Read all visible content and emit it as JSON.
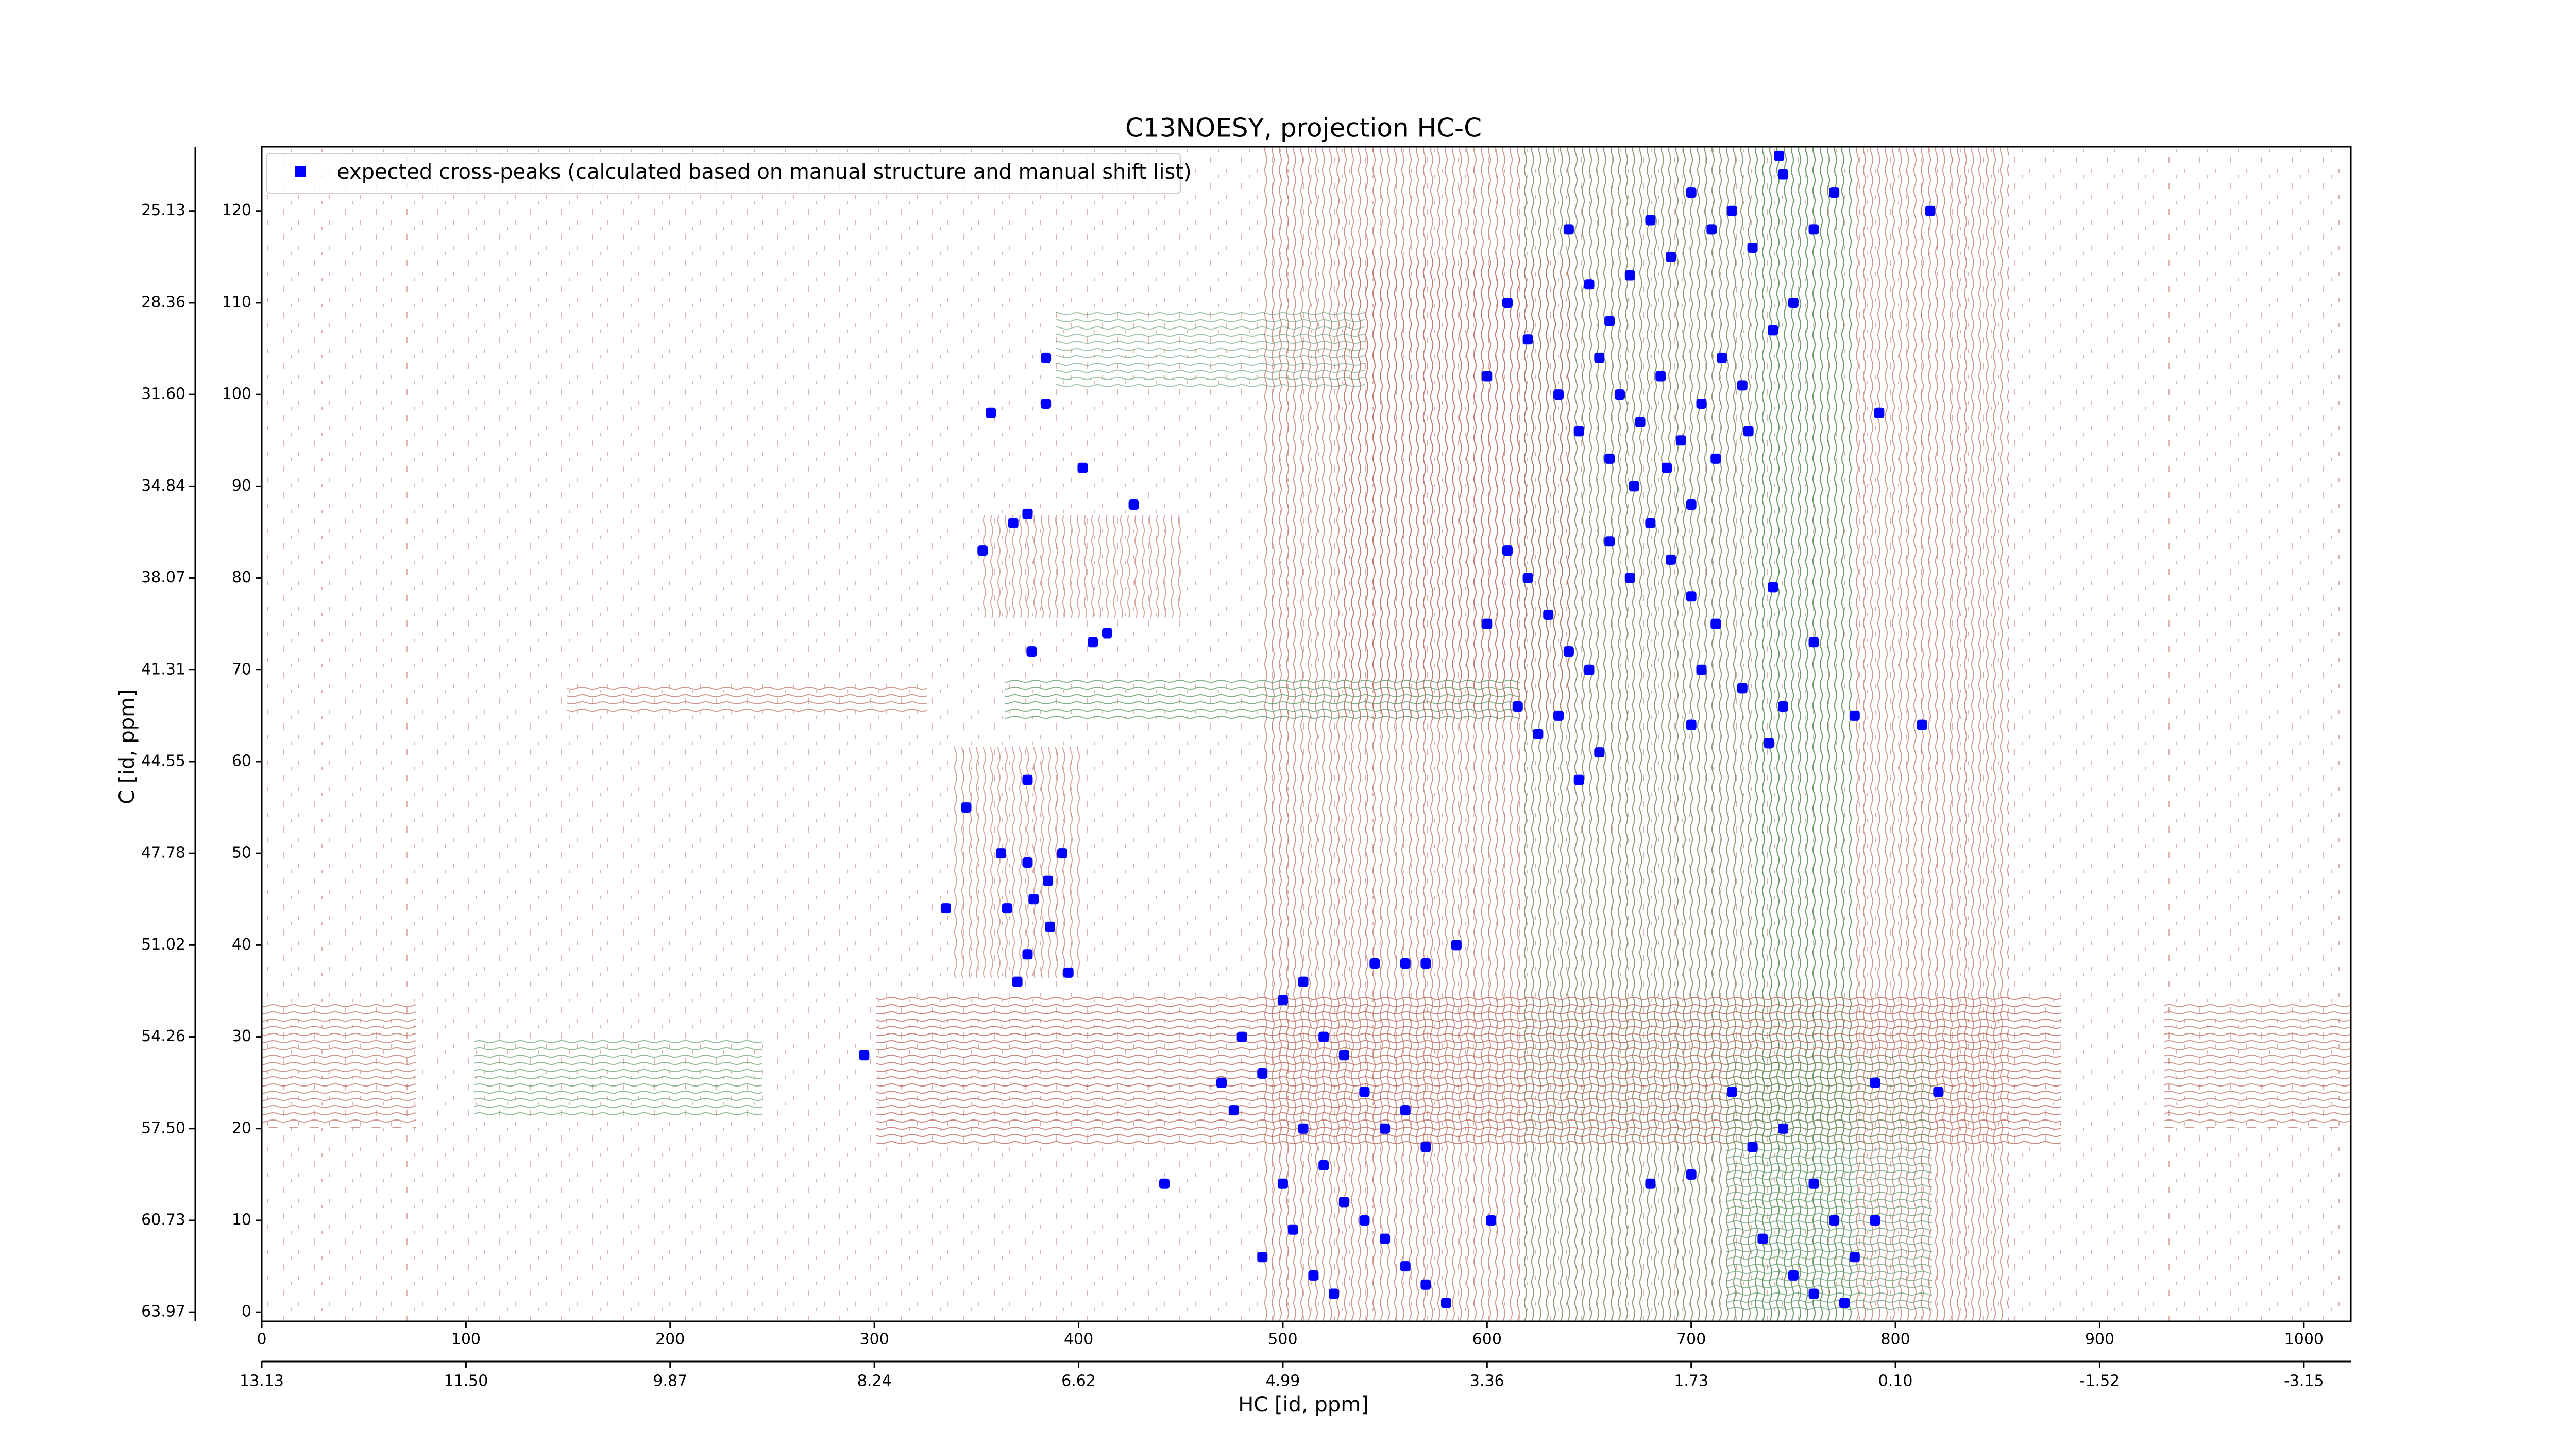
{
  "chart_data": {
    "type": "scatter",
    "title": "C13NOESY, projection HC-C",
    "x_label": "HC [id, ppm]",
    "y_label": "C [id, ppm]",
    "xlim": [
      0,
      1023
    ],
    "ylim": [
      -1,
      127
    ],
    "xticks": [
      0,
      100,
      200,
      300,
      400,
      500,
      600,
      700,
      800,
      900,
      1000
    ],
    "x2ticks": [
      {
        "value": 0,
        "label": "13.13"
      },
      {
        "value": 100,
        "label": "11.50"
      },
      {
        "value": 200,
        "label": "9.87"
      },
      {
        "value": 300,
        "label": "8.24"
      },
      {
        "value": 400,
        "label": "6.62"
      },
      {
        "value": 500,
        "label": "4.99"
      },
      {
        "value": 600,
        "label": "3.36"
      },
      {
        "value": 700,
        "label": "1.73"
      },
      {
        "value": 800,
        "label": "0.10"
      },
      {
        "value": 900,
        "label": "-1.52"
      },
      {
        "value": 1000,
        "label": "-3.15"
      }
    ],
    "yticks": [
      0,
      10,
      20,
      30,
      40,
      50,
      60,
      70,
      80,
      90,
      100,
      110,
      120
    ],
    "y2ticks": [
      {
        "value": 0,
        "label": "63.97"
      },
      {
        "value": 10,
        "label": "60.73"
      },
      {
        "value": 20,
        "label": "57.50"
      },
      {
        "value": 30,
        "label": "54.26"
      },
      {
        "value": 40,
        "label": "51.02"
      },
      {
        "value": 50,
        "label": "47.78"
      },
      {
        "value": 60,
        "label": "44.55"
      },
      {
        "value": 70,
        "label": "41.31"
      },
      {
        "value": 80,
        "label": "38.07"
      },
      {
        "value": 90,
        "label": "34.84"
      },
      {
        "value": 100,
        "label": "31.60"
      },
      {
        "value": 110,
        "label": "28.36"
      },
      {
        "value": 120,
        "label": "25.13"
      }
    ],
    "legend": "upper left",
    "series": [
      {
        "name": "expected cross-peaks (calculated based on manual structure and manual shift list)",
        "color": "#0000ff",
        "x": [
          640,
          650,
          660,
          670,
          680,
          690,
          700,
          710,
          720,
          730,
          745,
          760,
          770,
          655,
          665,
          675,
          685,
          695,
          705,
          715,
          725,
          635,
          645,
          660,
          672,
          688,
          700,
          712,
          728,
          740,
          750,
          620,
          610,
          600,
          610,
          620,
          630,
          640,
          650,
          660,
          670,
          680,
          690,
          700,
          712,
          725,
          740,
          760,
          615,
          625,
          635,
          600,
          645,
          655,
          700,
          705,
          738,
          745,
          357,
          384,
          384,
          402,
          427,
          375,
          368,
          353,
          377,
          407,
          414,
          375,
          345,
          362,
          375,
          385,
          392,
          365,
          378,
          386,
          335,
          375,
          395,
          370,
          295,
          480,
          490,
          500,
          510,
          520,
          530,
          540,
          550,
          560,
          570,
          510,
          520,
          530,
          540,
          550,
          560,
          570,
          580,
          500,
          490,
          505,
          515,
          525,
          545,
          560,
          570,
          585,
          442,
          602,
          470,
          476,
          720,
          730,
          745,
          760,
          770,
          780,
          735,
          750,
          760,
          775,
          790,
          790,
          821,
          700,
          680,
          792,
          813,
          780,
          817,
          743
        ],
        "y": [
          118,
          112,
          108,
          113,
          119,
          115,
          122,
          118,
          120,
          116,
          124,
          118,
          122,
          104,
          100,
          97,
          102,
          95,
          99,
          104,
          101,
          100,
          96,
          93,
          90,
          92,
          88,
          93,
          96,
          107,
          110,
          106,
          110,
          102,
          83,
          80,
          76,
          72,
          70,
          84,
          80,
          86,
          82,
          78,
          75,
          68,
          79,
          73,
          66,
          63,
          65,
          75,
          58,
          61,
          64,
          70,
          62,
          66,
          98,
          104,
          99,
          92,
          88,
          87,
          86,
          83,
          72,
          73,
          74,
          58,
          55,
          50,
          49,
          47,
          50,
          44,
          45,
          42,
          44,
          39,
          37,
          36,
          28,
          30,
          26,
          34,
          36,
          30,
          28,
          24,
          20,
          22,
          18,
          20,
          16,
          12,
          10,
          8,
          5,
          3,
          1,
          14,
          6,
          9,
          4,
          2,
          38,
          38,
          38,
          40,
          14,
          10,
          25,
          22,
          24,
          18,
          20,
          14,
          10,
          6,
          8,
          4,
          2,
          1,
          10,
          25,
          24,
          15,
          14,
          98,
          64,
          65,
          120,
          126
        ]
      }
    ]
  }
}
